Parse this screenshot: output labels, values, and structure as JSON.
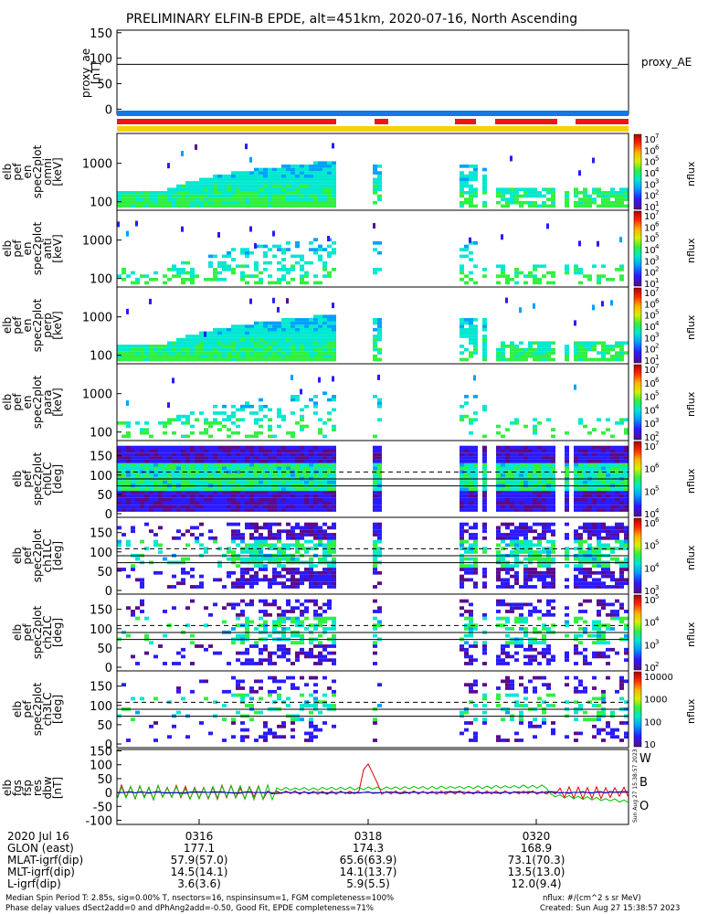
{
  "title": "PRELIMINARY ELFIN-B EPDE, alt=451km, 2020-07-16, North Ascending",
  "colors": {
    "status_blue": "#1478e6",
    "status_red": "#f01414",
    "status_yellow": "#f5d20a",
    "trace_red": "#e00000",
    "trace_green": "#00c000",
    "trace_blue": "#0000e0"
  },
  "panels": {
    "proxy_ae": {
      "ylabel_lines": [
        "proxy_ae",
        "[nT]"
      ],
      "ticks": [
        "150",
        "100",
        "50",
        "0"
      ],
      "legend": "proxy_AE",
      "value": 88
    },
    "spec_omni": {
      "ylabel_lines": [
        "elb",
        "pef",
        "en",
        "spec2plot",
        "omni",
        "[keV]"
      ],
      "ticks": [
        "1000",
        "100"
      ]
    },
    "spec_anti": {
      "ylabel_lines": [
        "elb",
        "pef",
        "en",
        "spec2plot",
        "anti",
        "[keV]"
      ],
      "ticks": [
        "1000",
        "100"
      ]
    },
    "spec_perp": {
      "ylabel_lines": [
        "elb",
        "pef",
        "en",
        "spec2plot",
        "perp",
        "[keV]"
      ],
      "ticks": [
        "1000",
        "100"
      ]
    },
    "spec_para": {
      "ylabel_lines": [
        "elb",
        "pef",
        "en",
        "spec2plot",
        "para",
        "[keV]"
      ],
      "ticks": [
        "1000",
        "100"
      ]
    },
    "pa_ch0": {
      "ylabel_lines": [
        "elb",
        "pef",
        "spec2plot",
        "ch0LC",
        "[deg]"
      ],
      "ticks": [
        "150",
        "100",
        "50",
        "0"
      ]
    },
    "pa_ch1": {
      "ylabel_lines": [
        "elb",
        "pef",
        "spec2plot",
        "ch1LC",
        "[deg]"
      ],
      "ticks": [
        "150",
        "100",
        "50",
        "0"
      ]
    },
    "pa_ch2": {
      "ylabel_lines": [
        "elb",
        "pef",
        "spec2plot",
        "ch2LC",
        "[deg]"
      ],
      "ticks": [
        "150",
        "100",
        "50",
        "0"
      ]
    },
    "pa_ch3": {
      "ylabel_lines": [
        "elb",
        "pef",
        "spec2plot",
        "ch3LC",
        "[deg]"
      ],
      "ticks": [
        "150",
        "100",
        "50",
        "0"
      ]
    },
    "fgm": {
      "ylabel_lines": [
        "elb",
        "fgs",
        "fsp",
        "res",
        "dbw",
        "[nT]"
      ],
      "ticks": [
        "150",
        "100",
        "50",
        "0",
        "-50",
        "-100"
      ],
      "legend": [
        "W",
        "B",
        "O"
      ]
    }
  },
  "colorbars": {
    "spec_omni": [
      "10",
      "10",
      "10",
      "10",
      "10",
      "10",
      "10"
    ],
    "exp_omni": [
      "7",
      "6",
      "5",
      "4",
      "3",
      "2",
      "1"
    ],
    "spec_anti": [
      "10",
      "10",
      "10",
      "10",
      "10",
      "10",
      "10"
    ],
    "exp_anti": [
      "7",
      "6",
      "5",
      "4",
      "3",
      "2",
      "1"
    ],
    "spec_perp": [
      "10",
      "10",
      "10",
      "10",
      "10",
      "10",
      "10"
    ],
    "exp_perp": [
      "7",
      "6",
      "5",
      "4",
      "3",
      "2",
      "1"
    ],
    "spec_para": [
      "10",
      "10",
      "10",
      "10",
      "10",
      "10"
    ],
    "exp_para": [
      "7",
      "6",
      "5",
      "4",
      "3",
      "2"
    ],
    "pa_ch0": [
      "10",
      "10",
      "10",
      "10"
    ],
    "exp_pa_ch0": [
      "7",
      "6",
      "5",
      "4"
    ],
    "pa_ch1": [
      "10",
      "10",
      "10",
      "10"
    ],
    "exp_pa_ch1": [
      "6",
      "5",
      "4",
      "3"
    ],
    "pa_ch2": [
      "10",
      "10",
      "10",
      "10"
    ],
    "exp_pa_ch2": [
      "5",
      "4",
      "3",
      "2"
    ],
    "pa_ch3": [
      "10000",
      "1000",
      "100",
      "10"
    ],
    "unit": "nflux"
  },
  "side_stamp": "Sun Aug 27 15:38:57 2023",
  "time_axis": {
    "row_labels": [
      "2020 Jul 16",
      "GLON (east)",
      "MLAT-igrf(dip)",
      "MLT-igrf(dip)",
      "L-igrf(dip)"
    ],
    "columns": [
      {
        "time": "0316",
        "glon": "177.1",
        "mlat": "57.9(57.0)",
        "mlt": "14.5(14.1)",
        "l": "3.6(3.6)"
      },
      {
        "time": "0318",
        "glon": "174.3",
        "mlat": "65.6(63.9)",
        "mlt": "14.1(13.7)",
        "l": "5.9(5.5)"
      },
      {
        "time": "0320",
        "glon": "168.9",
        "mlat": "73.1(70.3)",
        "mlt": "13.5(13.0)",
        "l": "12.0(9.4)"
      }
    ]
  },
  "footer": {
    "line1": "Median Spin Period T: 2.85s, sig=0.00% T, nsectors=16, nspinsinsum=1, FGM completeness=100%",
    "line2": "Phase delay values dSect2add=0 and dPhAng2add=-0.50, Good Fit, EPDE completeness=71%",
    "units": "nflux: #/(cm^2 s sr MeV)",
    "created": "Created: Sun Aug 27 15:38:57 2023"
  },
  "chart_data": {
    "type": "heatmap",
    "title": "PRELIMINARY ELFIN-B EPDE, alt=451km, 2020-07-16, North Ascending",
    "x_ticks": [
      "0316",
      "0318",
      "0320"
    ],
    "proxy_ae_series": {
      "name": "proxy_AE",
      "value": 88,
      "ylim": [
        -10,
        155
      ]
    },
    "energy_ylim_keV": [
      60,
      6000
    ],
    "pitch_angle_ylim_deg": [
      0,
      180
    ],
    "loss_cone_deg": 72,
    "anti_loss_cone_deg": 108,
    "colorbar_range": [
      10,
      10000000
    ],
    "fgm_ylim": [
      -115,
      155
    ],
    "fgm_series": [
      {
        "name": "W",
        "peak": 110
      },
      {
        "name": "B",
        "range": [
          -50,
          45
        ]
      },
      {
        "name": "O",
        "range": [
          -5,
          5
        ]
      }
    ]
  }
}
